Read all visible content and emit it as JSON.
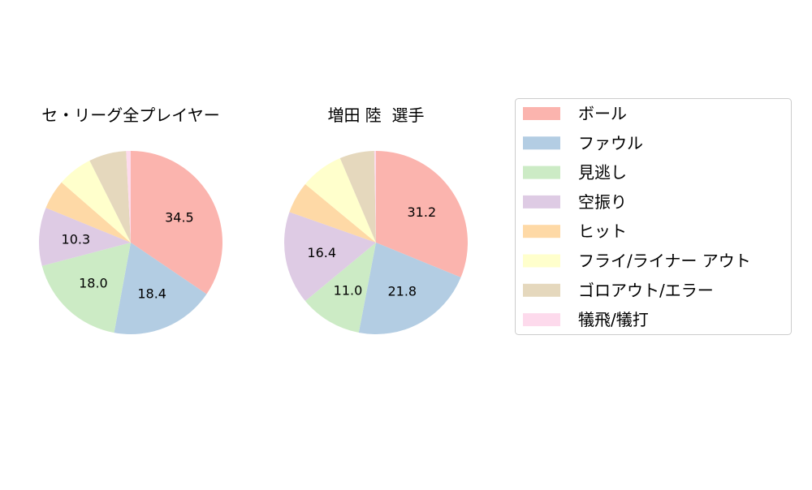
{
  "chart_data": [
    {
      "type": "pie",
      "title": "セ・リーグ全プレイヤー",
      "categories": [
        "ボール",
        "ファウル",
        "見逃し",
        "空振り",
        "ヒット",
        "フライ/ライナー アウト",
        "ゴロアウト/エラー",
        "犠飛/犠打"
      ],
      "values": [
        34.5,
        18.4,
        18.0,
        10.3,
        5.2,
        6.2,
        6.6,
        0.8
      ],
      "labels": [
        "34.5",
        "18.4",
        "18.0",
        "10.3",
        "",
        "",
        "",
        ""
      ],
      "start_angle": 90,
      "direction": "clockwise"
    },
    {
      "type": "pie",
      "title": "増田 陸  選手",
      "categories": [
        "ボール",
        "ファウル",
        "見逃し",
        "空振り",
        "ヒット",
        "フライ/ライナー アウト",
        "ゴロアウト/エラー",
        "犠飛/犠打"
      ],
      "values": [
        31.2,
        21.8,
        11.0,
        16.4,
        5.6,
        7.6,
        6.1,
        0.3
      ],
      "labels": [
        "31.2",
        "21.8",
        "11.0",
        "16.4",
        "",
        "",
        "",
        ""
      ],
      "start_angle": 90,
      "direction": "clockwise"
    }
  ],
  "legend": {
    "placement": "right",
    "entries": [
      "ボール",
      "ファウル",
      "見逃し",
      "空振り",
      "ヒット",
      "フライ/ライナー アウト",
      "ゴロアウト/エラー",
      "犠飛/犠打"
    ]
  },
  "colors": [
    "#fbb4ae",
    "#b3cde3",
    "#ccebc5",
    "#decbe4",
    "#fed9a6",
    "#ffffcc",
    "#e5d8bd",
    "#fddaec"
  ]
}
